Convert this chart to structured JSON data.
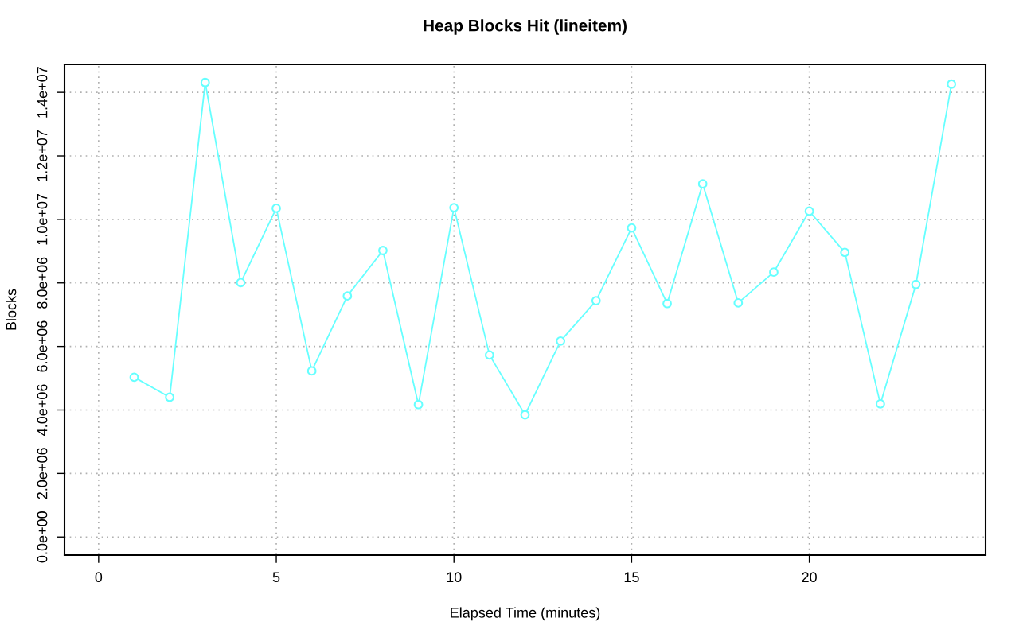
{
  "chart_data": {
    "type": "line",
    "title": "Heap Blocks Hit (lineitem)",
    "xlabel": "Elapsed Time (minutes)",
    "ylabel": "Blocks",
    "x": [
      1,
      2,
      3,
      4,
      5,
      6,
      7,
      8,
      9,
      10,
      11,
      12,
      13,
      14,
      15,
      16,
      17,
      18,
      19,
      20,
      21,
      22,
      23,
      24
    ],
    "series": [
      {
        "color": "#66ffff",
        "values": [
          5030000,
          4400000,
          14310000,
          8010000,
          10350000,
          5230000,
          7590000,
          9020000,
          4170000,
          10370000,
          5730000,
          3850000,
          6170000,
          7440000,
          9730000,
          7350000,
          11120000,
          7370000,
          8340000,
          10260000,
          8960000,
          4190000,
          7950000,
          14260000
        ]
      }
    ],
    "xlim": [
      -0.96,
      24.96
    ],
    "xticks": [
      0,
      5,
      10,
      15,
      20
    ],
    "ylim": [
      -570000,
      14880000
    ],
    "yticks": [
      {
        "value": 0,
        "label": "0.0e+00"
      },
      {
        "value": 2000000,
        "label": "2.0e+06"
      },
      {
        "value": 4000000,
        "label": "4.0e+06"
      },
      {
        "value": 6000000,
        "label": "6.0e+06"
      },
      {
        "value": 8000000,
        "label": "8.0e+06"
      },
      {
        "value": 10000000,
        "label": "1.0e+07"
      },
      {
        "value": 12000000,
        "label": "1.2e+07"
      },
      {
        "value": 14000000,
        "label": "1.4e+07"
      }
    ],
    "grid": true,
    "marker": "circle",
    "line_style": "solid"
  }
}
